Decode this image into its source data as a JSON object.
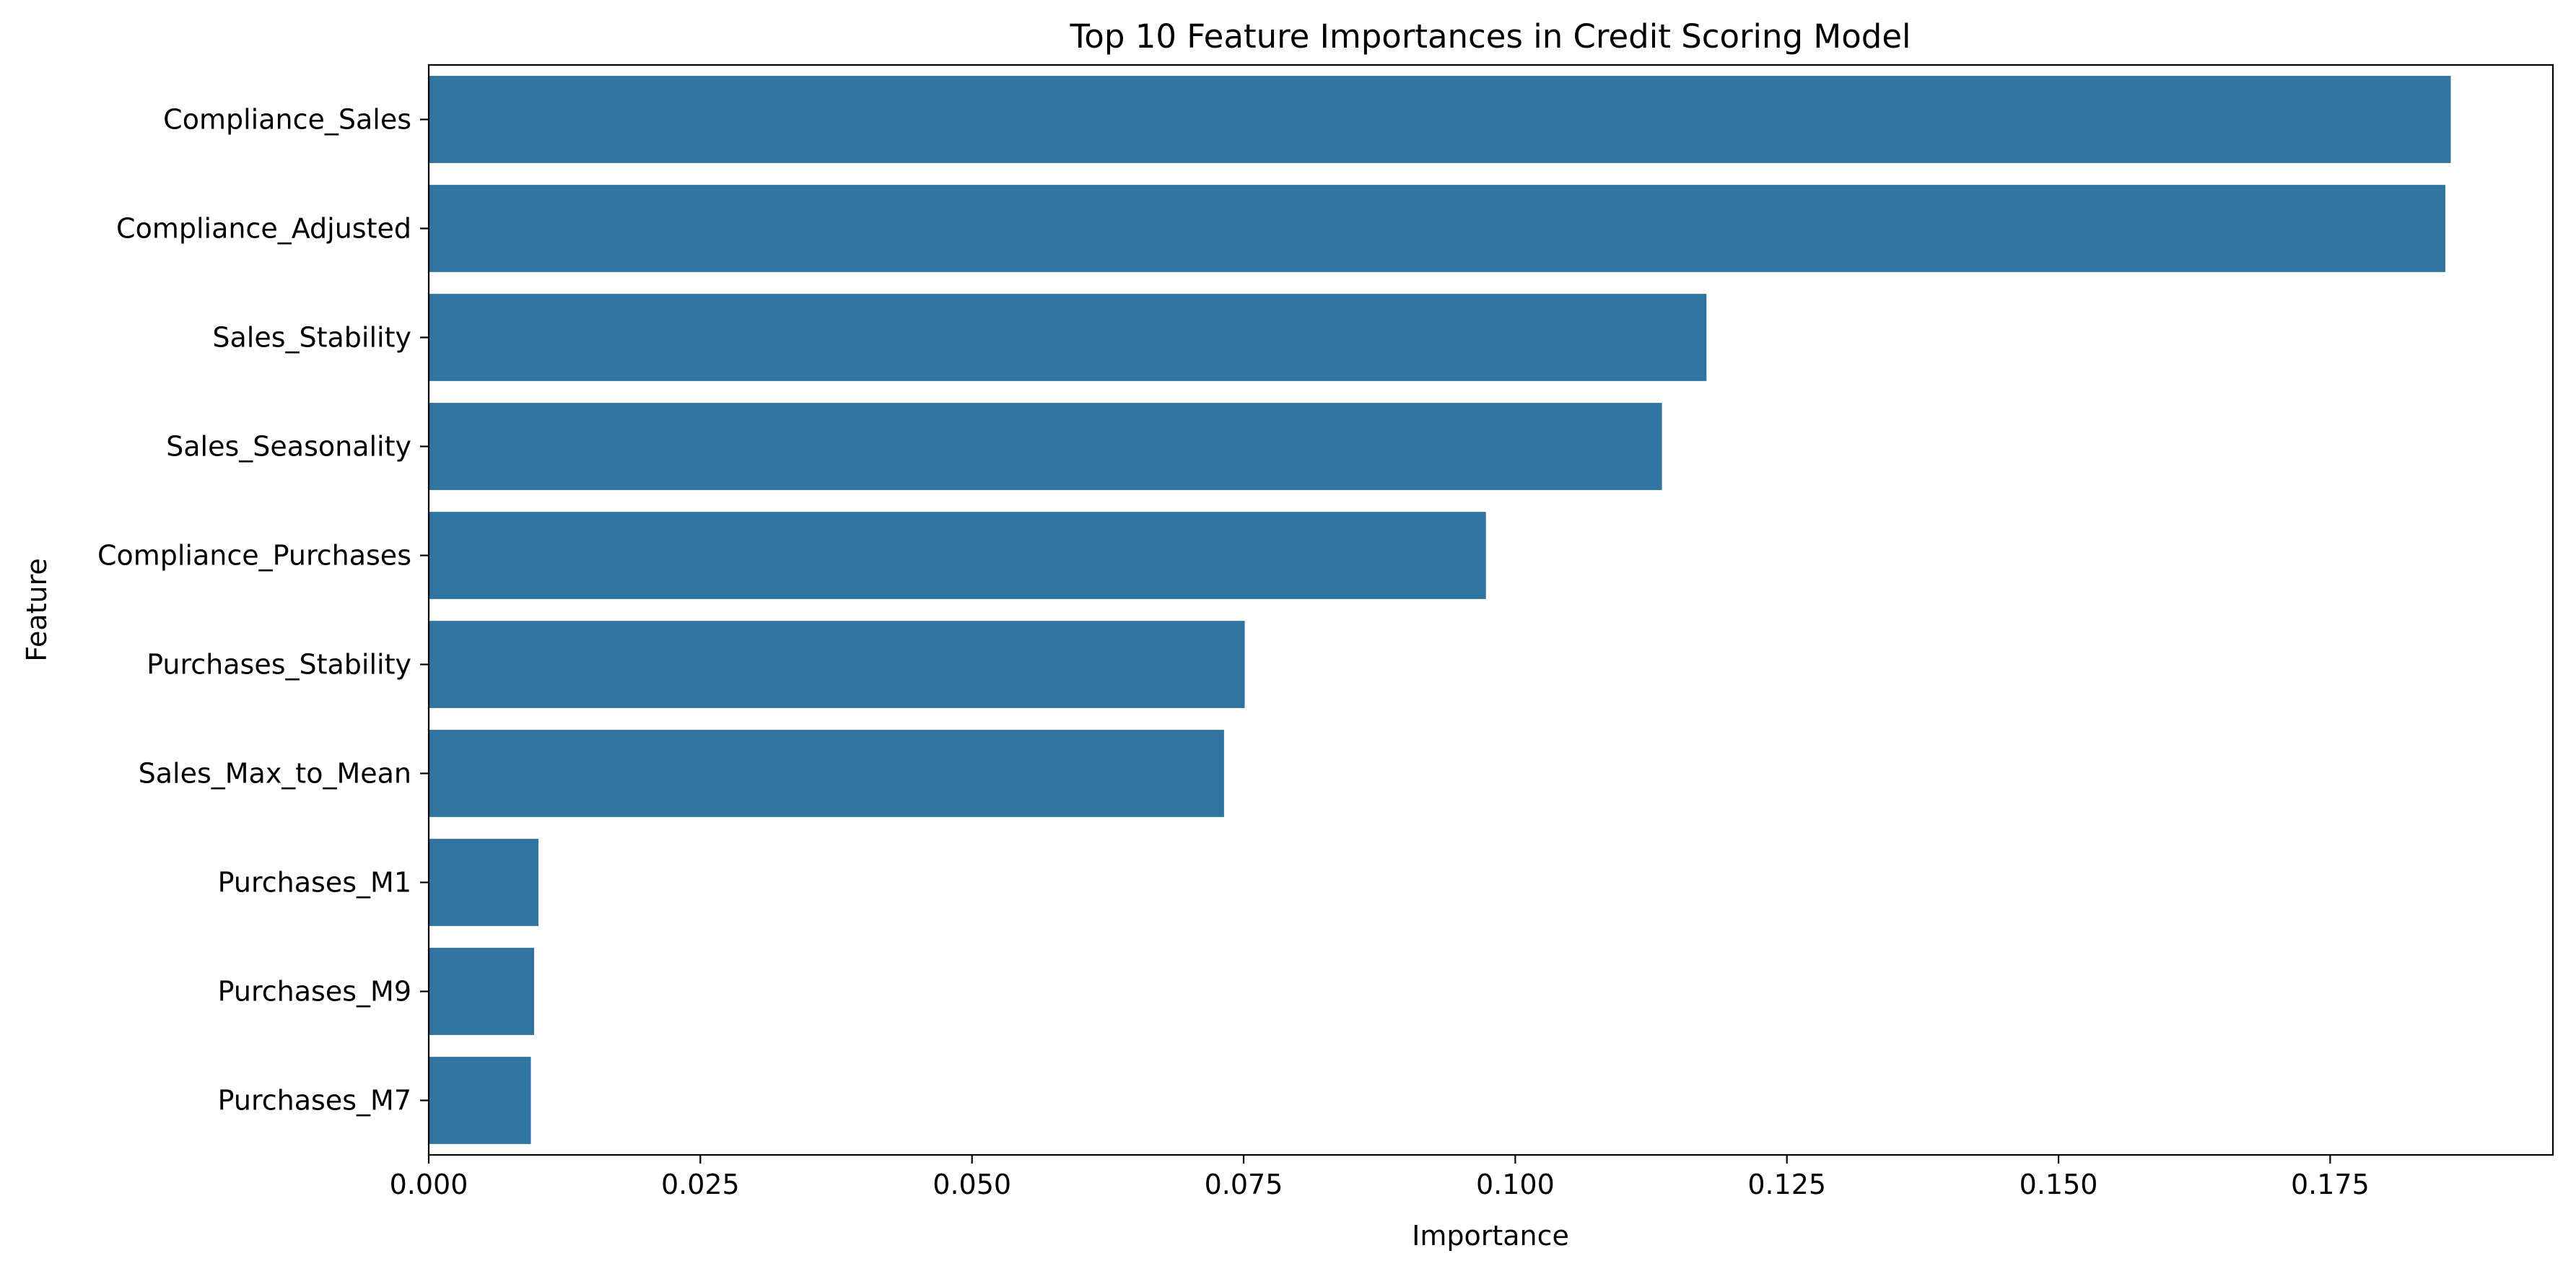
{
  "chart_data": {
    "type": "bar",
    "orientation": "horizontal",
    "title": "Top 10 Feature Importances in Credit Scoring Model",
    "xlabel": "Importance",
    "ylabel": "Feature",
    "categories": [
      "Compliance_Sales",
      "Compliance_Adjusted",
      "Sales_Stability",
      "Sales_Seasonality",
      "Compliance_Purchases",
      "Purchases_Stability",
      "Sales_Max_to_Mean",
      "Purchases_M1",
      "Purchases_M9",
      "Purchases_M7"
    ],
    "values": [
      0.1861,
      0.1856,
      0.1176,
      0.1135,
      0.0973,
      0.0751,
      0.0732,
      0.0101,
      0.0097,
      0.0094
    ],
    "xlim": [
      0.0,
      0.1955
    ],
    "xticks": [
      0.0,
      0.025,
      0.05,
      0.075,
      0.1,
      0.125,
      0.15,
      0.175
    ],
    "xtick_labels": [
      "0.000",
      "0.025",
      "0.050",
      "0.075",
      "0.100",
      "0.125",
      "0.150",
      "0.175"
    ],
    "grid": false,
    "legend": "none",
    "bar_color": "#3274a1"
  }
}
